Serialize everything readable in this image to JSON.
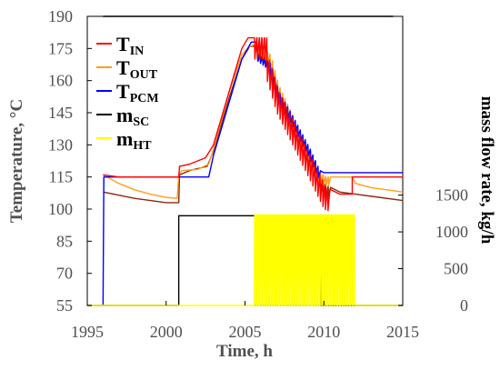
{
  "chart_data": {
    "type": "line",
    "x_axis": {
      "label": "Time, h",
      "ticks": [
        1995,
        2000,
        2005,
        2010,
        2015
      ],
      "range": [
        1995,
        2015
      ]
    },
    "y_left": {
      "label": "Temperature, °C",
      "ticks": [
        55,
        70,
        85,
        100,
        115,
        130,
        145,
        160,
        175,
        190
      ],
      "range": [
        55,
        190
      ]
    },
    "y_right": {
      "label": "mass flow rate, kg/h",
      "ticks": [
        0,
        500,
        1000,
        1500
      ],
      "range": [
        0,
        3930
      ]
    },
    "legend_position": "top-left",
    "series": [
      {
        "name": "T_IN",
        "main": "T",
        "sub": "IN",
        "color": "#ff0000",
        "axis": "left",
        "points": [
          [
            1996,
            116
          ],
          [
            1997,
            115
          ],
          [
            1998,
            115
          ],
          [
            1999,
            115
          ],
          [
            2000,
            115
          ],
          [
            2000.8,
            115
          ],
          [
            2000.85,
            120
          ],
          [
            2001.5,
            121
          ],
          [
            2002.5,
            124
          ],
          [
            2003,
            130
          ],
          [
            2004,
            155
          ],
          [
            2004.8,
            175
          ],
          [
            2005.2,
            180
          ],
          [
            2006.3,
            180
          ],
          [
            2006.3,
            172
          ],
          [
            2007,
            155
          ],
          [
            2008,
            140
          ],
          [
            2009,
            125
          ],
          [
            2009.6,
            116
          ],
          [
            2010,
            110
          ],
          [
            2011,
            107
          ],
          [
            2011.8,
            107
          ],
          [
            2011.8,
            115
          ],
          [
            2012,
            115
          ],
          [
            2013,
            115
          ],
          [
            2015,
            115
          ]
        ],
        "oscillation": {
          "x_range": [
            2005.6,
            2010.3
          ],
          "period": 0.16,
          "depth": 10
        }
      },
      {
        "name": "T_OUT",
        "main": "T",
        "sub": "OUT",
        "color": "#ff9e1b",
        "axis": "left",
        "points": [
          [
            1996,
            116
          ],
          [
            1997,
            112
          ],
          [
            1998,
            109
          ],
          [
            1999,
            107
          ],
          [
            2000,
            105.5
          ],
          [
            2000.7,
            105
          ],
          [
            2000.8,
            116
          ],
          [
            2001,
            118
          ],
          [
            2002,
            118.5
          ],
          [
            2002.7,
            121
          ],
          [
            2003,
            128
          ],
          [
            2004,
            155
          ],
          [
            2004.8,
            172
          ],
          [
            2005.3,
            176
          ],
          [
            2005.7,
            177
          ],
          [
            2006.5,
            172
          ],
          [
            2007,
            158
          ],
          [
            2008,
            142
          ],
          [
            2009,
            127
          ],
          [
            2009.6,
            117
          ],
          [
            2010,
            115
          ],
          [
            2011.8,
            115
          ],
          [
            2012,
            112
          ],
          [
            2013,
            110
          ],
          [
            2015,
            108
          ]
        ],
        "oscillation": {
          "x_range": [
            2005.8,
            2010.3
          ],
          "period": 0.16,
          "depth": 4
        }
      },
      {
        "name": "T_PCM",
        "main": "T",
        "sub": "PCM",
        "color": "#0000ff",
        "axis": "left",
        "points": [
          [
            1996,
            55
          ],
          [
            1996.05,
            115
          ],
          [
            1997,
            115
          ],
          [
            1998,
            115
          ],
          [
            1999,
            115
          ],
          [
            2000,
            115
          ],
          [
            2002.7,
            115
          ],
          [
            2003,
            125
          ],
          [
            2004,
            150
          ],
          [
            2004.8,
            170
          ],
          [
            2005.4,
            178
          ],
          [
            2005.7,
            178
          ],
          [
            2005.8,
            172
          ],
          [
            2006.5,
            168
          ],
          [
            2007,
            155
          ],
          [
            2008,
            142
          ],
          [
            2009,
            128
          ],
          [
            2009.6,
            118
          ],
          [
            2010,
            117
          ],
          [
            2011,
            117
          ],
          [
            2013,
            117
          ],
          [
            2015,
            117
          ]
        ],
        "oscillation": {
          "x_range": [
            2005.8,
            2009.8
          ],
          "period": 0.16,
          "depth": 3
        }
      },
      {
        "name": "T_brown",
        "color": "#8b2a0e",
        "axis": "left",
        "points": [
          [
            1996,
            108
          ],
          [
            1997,
            106.5
          ],
          [
            1998,
            105
          ],
          [
            1999,
            104
          ],
          [
            2000,
            103
          ],
          [
            2000.8,
            103
          ],
          [
            2000.85,
            116
          ],
          [
            2001.5,
            118
          ],
          [
            2002.6,
            120
          ],
          [
            2003,
            127
          ],
          [
            2004,
            152
          ],
          [
            2004.8,
            170
          ],
          [
            2005.3,
            176
          ],
          [
            2005.7,
            176
          ],
          [
            2006.5,
            170
          ],
          [
            2007,
            156
          ],
          [
            2008,
            141
          ],
          [
            2009,
            127
          ],
          [
            2009.6,
            118
          ],
          [
            2010,
            111
          ],
          [
            2011,
            108
          ],
          [
            2012,
            107
          ],
          [
            2013,
            106
          ],
          [
            2015,
            104
          ]
        ],
        "oscillation": {
          "x_range": [
            2005.8,
            2010.3
          ],
          "period": 0.16,
          "depth": 5
        }
      },
      {
        "name": "m_SC",
        "main": "m",
        "sub": "SC",
        "color": "#000000",
        "axis": "right",
        "points": [
          [
            1995,
            0
          ],
          [
            2000.8,
            0
          ],
          [
            2000.8,
            1220
          ],
          [
            2009.8,
            1220
          ],
          [
            2009.8,
            0
          ],
          [
            2015,
            0
          ]
        ]
      },
      {
        "name": "m_HT",
        "main": "m",
        "sub": "HT",
        "color": "#ffff00",
        "axis": "right",
        "points": [
          [
            1995,
            0
          ],
          [
            2005.6,
            0
          ],
          [
            2005.6,
            1220
          ],
          [
            2012,
            1220
          ],
          [
            2012,
            0
          ],
          [
            2015,
            0
          ]
        ],
        "pulses": {
          "x_range": [
            2005.6,
            2012.0
          ],
          "period": 0.16,
          "high": 1230
        }
      }
    ],
    "top_line": {
      "color": "#000000",
      "x_range": [
        1996,
        2014.4
      ],
      "y": 190
    }
  }
}
